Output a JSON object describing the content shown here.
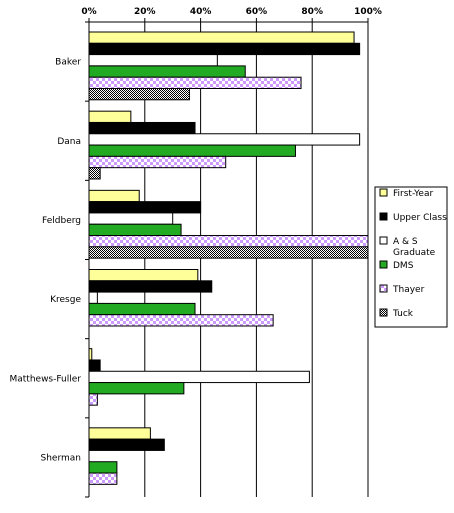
{
  "chart_data": {
    "type": "bar",
    "orientation": "horizontal",
    "categories": [
      "Baker",
      "Dana",
      "Feldberg",
      "Kresge",
      "Matthews-Fuller",
      "Sherman"
    ],
    "x_ticks": [
      "0%",
      "20%",
      "40%",
      "60%",
      "80%",
      "100%"
    ],
    "xlim": [
      0,
      100
    ],
    "grid": true,
    "legend_position": "right",
    "series": [
      {
        "name": "First-Year",
        "fill": "#ffff99",
        "pattern": "solid",
        "values": [
          95,
          15,
          18,
          39,
          1,
          22
        ]
      },
      {
        "name": "Upper Class",
        "fill": "#000000",
        "pattern": "solid",
        "values": [
          97,
          38,
          40,
          44,
          4,
          27
        ]
      },
      {
        "name": "A & S Graduate",
        "fill": "#ffffff",
        "pattern": "solid",
        "values": [
          46,
          97,
          30,
          3,
          79,
          0
        ]
      },
      {
        "name": "DMS",
        "fill": "#22aa22",
        "pattern": "solid",
        "values": [
          56,
          74,
          33,
          38,
          34,
          10
        ]
      },
      {
        "name": "Thayer",
        "fill": "#cc99ff",
        "pattern": "check",
        "values": [
          76,
          49,
          100,
          66,
          3,
          10
        ]
      },
      {
        "name": "Tuck",
        "fill": "#888888",
        "pattern": "dots",
        "values": [
          36,
          4,
          100,
          0,
          0,
          0
        ]
      }
    ]
  }
}
